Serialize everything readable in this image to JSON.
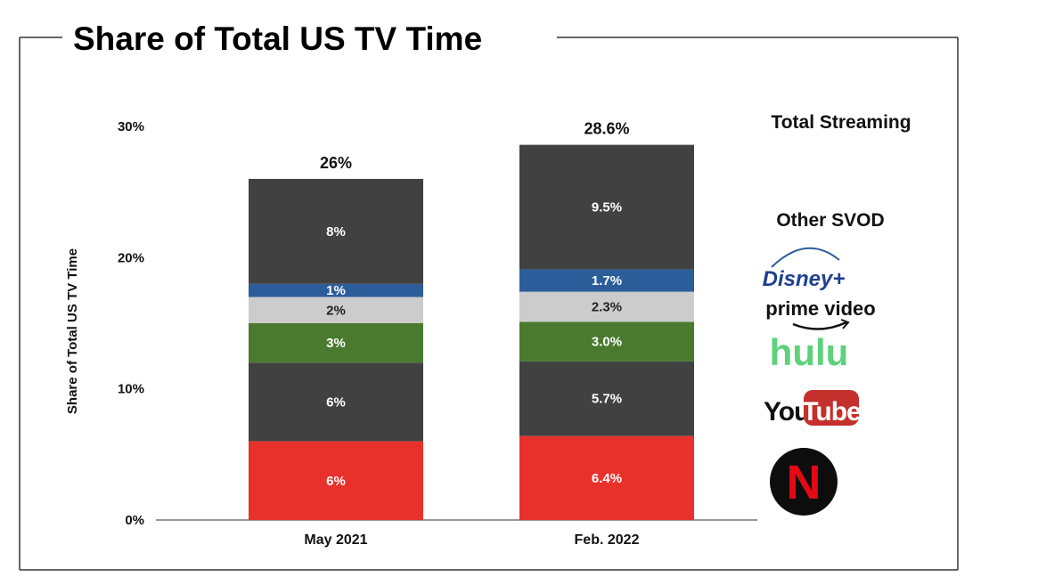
{
  "chart_data": {
    "type": "bar",
    "stacked": true,
    "title": "Share of Total US TV Time",
    "xlabel": "",
    "ylabel": "Share of Total US TV Time",
    "ylim": [
      0,
      30
    ],
    "yticks": [
      "0%",
      "10%",
      "20%",
      "30%"
    ],
    "grid": false,
    "categories": [
      "May 2021",
      "Feb. 2022"
    ],
    "totals": [
      26,
      28.6
    ],
    "total_labels": [
      "26%",
      "28.6%"
    ],
    "series": [
      {
        "name": "Netflix",
        "color": "#e8312a",
        "values": [
          6,
          6.4
        ],
        "labels": [
          "6%",
          "6.4%"
        ],
        "icon": "netflix-logo"
      },
      {
        "name": "YouTube",
        "color": "#414141",
        "values": [
          6,
          5.7
        ],
        "labels": [
          "6%",
          "5.7%"
        ],
        "icon": "youtube-logo"
      },
      {
        "name": "Hulu",
        "color": "#4a7a2e",
        "values": [
          3,
          3.0
        ],
        "labels": [
          "3%",
          "3.0%"
        ],
        "icon": "hulu-logo"
      },
      {
        "name": "Prime Video",
        "color": "#cccccc",
        "values": [
          2,
          2.3
        ],
        "labels": [
          "2%",
          "2.3%"
        ],
        "icon": "prime-video-logo"
      },
      {
        "name": "Disney+",
        "color": "#2b5d9b",
        "values": [
          1,
          1.7
        ],
        "labels": [
          "1%",
          "1.7%"
        ],
        "icon": "disney-plus-logo"
      },
      {
        "name": "Other SVOD",
        "color": "#414141",
        "values": [
          8,
          9.5
        ],
        "labels": [
          "8%",
          "9.5%"
        ]
      }
    ],
    "legend": {
      "total_streaming": "Total Streaming",
      "other_svod": "Other SVOD",
      "logos": {
        "disney": "Disney+",
        "prime": "prime video",
        "hulu": "hulu",
        "youtube_you": "You",
        "youtube_tube": "Tube",
        "netflix": "N"
      }
    }
  }
}
